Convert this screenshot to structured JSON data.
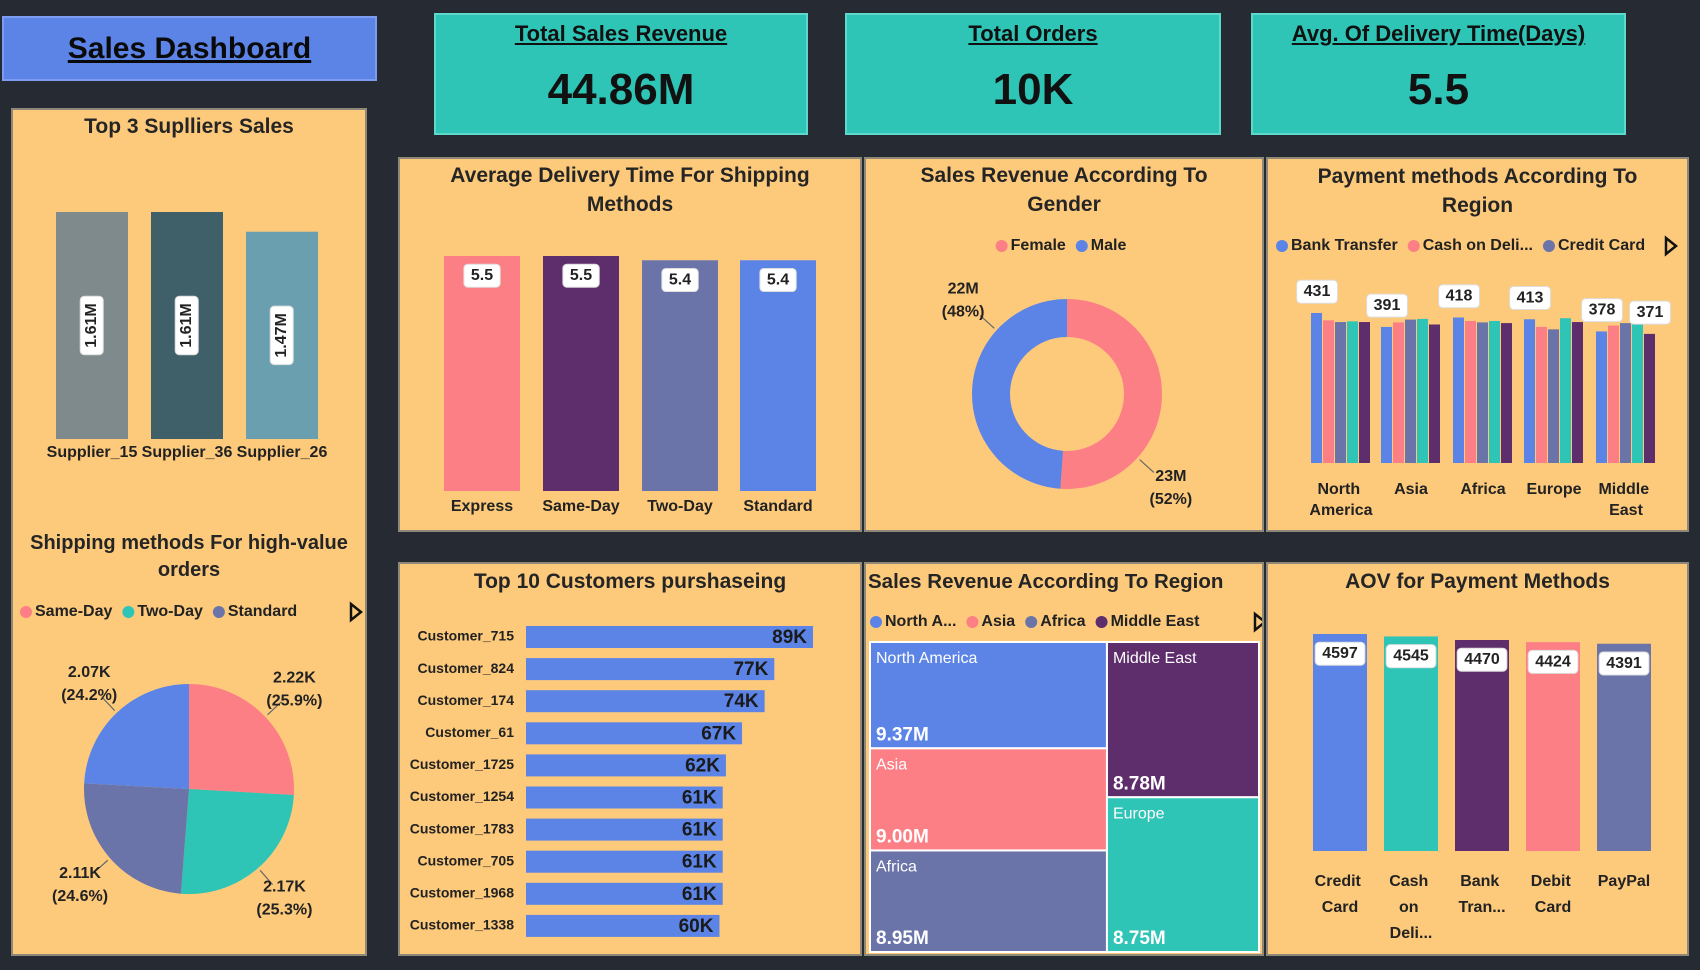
{
  "title": "Sales Dashboard",
  "kpis": [
    {
      "label": "Total Sales Revenue",
      "value": "44.86M"
    },
    {
      "label": "Total Orders",
      "value": "10K"
    },
    {
      "label": "Avg. Of Delivery Time(Days)",
      "value": "5.5"
    }
  ],
  "chart_data": [
    {
      "type": "bar",
      "title": "Top 3 Suplliers Sales",
      "categories": [
        "Supplier_15",
        "Supplier_36",
        "Supplier_26"
      ],
      "values": [
        1610000,
        1610000,
        1470000
      ],
      "value_labels": [
        "1.61M",
        "1.61M",
        "1.47M"
      ],
      "colors": [
        "#7f8a8c",
        "#3f6068",
        "#6a9fb0"
      ]
    },
    {
      "type": "pie",
      "title": "Shipping methods For high-value orders",
      "categories": [
        "Same-Day",
        "Two-Day",
        "Standard",
        null
      ],
      "values": [
        2220,
        2170,
        2110,
        2070
      ],
      "value_labels": [
        "2.22K",
        "2.17K",
        "2.11K",
        "2.07K"
      ],
      "percent_labels": [
        "(25.9%)",
        "(25.3%)",
        "(24.6%)",
        "(24.2%)"
      ],
      "colors": [
        "#fd7f86",
        "#2ec4b6",
        "#6b74a8",
        "#5b84e6"
      ]
    },
    {
      "type": "bar",
      "title": "Average Delivery Time For Shipping Methods",
      "categories": [
        "Express",
        "Same-Day",
        "Two-Day",
        "Standard"
      ],
      "values": [
        5.5,
        5.5,
        5.4,
        5.4
      ],
      "colors": [
        "#fd7f86",
        "#5e2d6b",
        "#6b74a8",
        "#5b84e6"
      ]
    },
    {
      "type": "donut",
      "title": "Sales Revenue According To Gender",
      "categories": [
        "Female",
        "Male"
      ],
      "values": [
        23000000,
        22000000
      ],
      "value_labels": [
        "23M",
        "22M"
      ],
      "percent_labels": [
        "(52%)",
        "(48%)"
      ],
      "colors": [
        "#fd7f86",
        "#5b84e6"
      ]
    },
    {
      "type": "grouped_bar",
      "title": "Payment methods According To Region",
      "categories": [
        "North America",
        "Asia",
        "Africa",
        "Europe",
        "Middle East"
      ],
      "series": [
        {
          "name": "Bank Transfer",
          "color": "#5b84e6",
          "values": [
            431,
            391,
            418,
            413,
            378
          ],
          "data_labels": true
        },
        {
          "name": "Cash on Deli...",
          "color": "#fd7f86",
          "values": [
            410,
            404,
            408,
            391,
            395
          ]
        },
        {
          "name": "Credit Card",
          "color": "#6b74a8",
          "values": [
            405,
            412,
            404,
            384,
            402
          ]
        },
        {
          "color": "#2ec4b6",
          "values": [
            407,
            414,
            408,
            416,
            404
          ]
        },
        {
          "color": "#5e2d6b",
          "values": [
            405,
            398,
            402,
            405,
            371
          ],
          "value_labels": [
            null,
            null,
            null,
            null,
            "371"
          ]
        }
      ]
    },
    {
      "type": "hbar",
      "title": "Top 10 Customers purshaseing",
      "categories": [
        "Customer_715",
        "Customer_824",
        "Customer_174",
        "Customer_61",
        "Customer_1725",
        "Customer_1254",
        "Customer_1783",
        "Customer_705",
        "Customer_1968",
        "Customer_1338"
      ],
      "values": [
        89000,
        77000,
        74000,
        67000,
        62000,
        61000,
        61000,
        61000,
        61000,
        60000
      ],
      "value_labels": [
        "89K",
        "77K",
        "74K",
        "67K",
        "62K",
        "61K",
        "61K",
        "61K",
        "61K",
        "60K"
      ],
      "color": "#5b84e6"
    },
    {
      "type": "treemap",
      "title": "Sales Revenue According To Region",
      "categories": [
        "North America",
        "Asia",
        "Africa",
        "Middle East",
        "Europe"
      ],
      "values": [
        9370000,
        9000000,
        8950000,
        8780000,
        8750000
      ],
      "value_labels": [
        "9.37M",
        "9.00M",
        "8.95M",
        "8.78M",
        "8.75M"
      ],
      "legend_labels": [
        "North A...",
        "Asia",
        "Africa",
        "Middle East"
      ],
      "colors": [
        "#5b84e6",
        "#fd7f86",
        "#6b74a8",
        "#5e2d6b",
        "#2ec4b6"
      ]
    },
    {
      "type": "bar",
      "title": "AOV for Payment Methods",
      "categories": [
        "Credit Card",
        "Cash on Deli...",
        "Bank Tran...",
        "Debit Card",
        "PayPal"
      ],
      "values": [
        4597,
        4545,
        4470,
        4424,
        4391
      ],
      "colors": [
        "#5b84e6",
        "#2ec4b6",
        "#5e2d6b",
        "#fd7f86",
        "#6b74a8"
      ]
    }
  ]
}
